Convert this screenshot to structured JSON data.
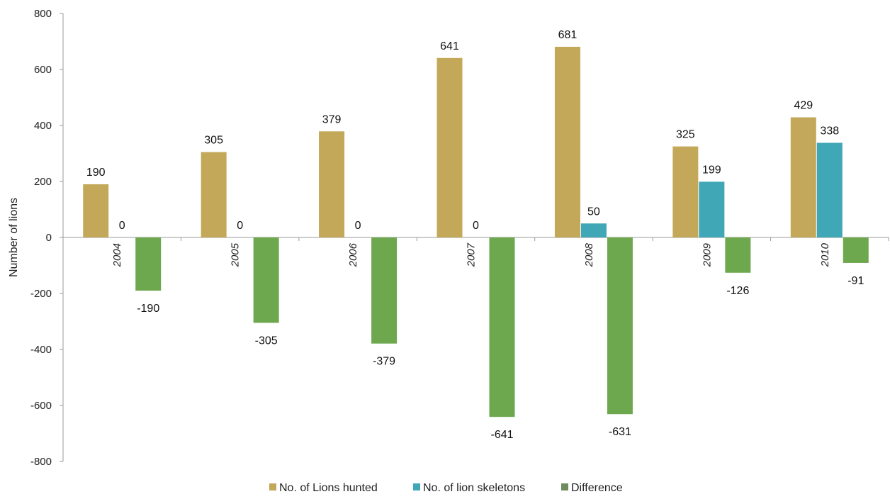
{
  "chart_data": {
    "type": "bar",
    "categories": [
      "2004",
      "2005",
      "2006",
      "2007",
      "2008",
      "2009",
      "2010"
    ],
    "series": [
      {
        "name": "No. of Lions hunted",
        "color": "#c4a85a",
        "values": [
          190,
          305,
          379,
          641,
          681,
          325,
          429
        ]
      },
      {
        "name": "No. of lion skeletons",
        "color": "#3fa7b5",
        "values": [
          0,
          0,
          0,
          0,
          50,
          199,
          338
        ]
      },
      {
        "name": "Difference",
        "color": "#6ea84e",
        "values": [
          -190,
          -305,
          -379,
          -641,
          -631,
          -126,
          -91
        ]
      }
    ],
    "data_labels": [
      [
        "190",
        "305",
        "379",
        "641",
        "681",
        "325",
        "429"
      ],
      [
        "0",
        "0",
        "0",
        "0",
        "50",
        "199",
        "338"
      ],
      [
        "-190",
        "-305",
        "-379",
        "-641",
        "-631",
        "-126",
        "-91"
      ]
    ],
    "ylabel": "Number of lions",
    "ylim": [
      -800,
      800
    ],
    "yticks": [
      -800,
      -600,
      -400,
      -200,
      0,
      200,
      400,
      600,
      800
    ],
    "grid": false,
    "legend_position": "bottom"
  }
}
